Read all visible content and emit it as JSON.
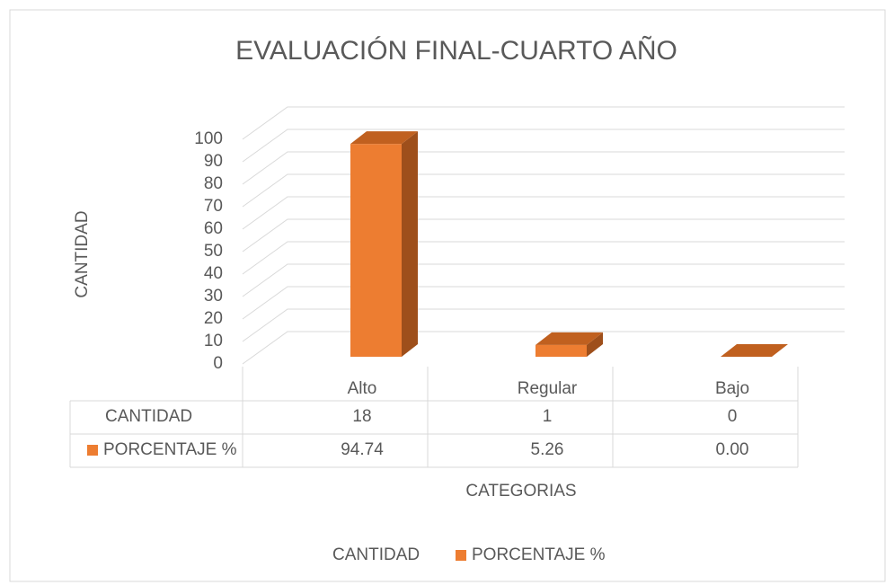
{
  "chart_data": {
    "type": "bar3d",
    "title": "EVALUACIÓN FINAL-CUARTO AÑO",
    "x_label": "CATEGORIAS",
    "y_label": "CANTIDAD",
    "categories": [
      "Alto",
      "Regular",
      "Bajo"
    ],
    "series": [
      {
        "name": "CANTIDAD",
        "values": [
          18,
          1,
          0
        ]
      },
      {
        "name": "PORCENTAJE %",
        "color": "#ed7d31",
        "values": [
          94.74,
          5.26,
          0.0
        ],
        "value_labels": [
          "94.74",
          "5.26",
          "0.00"
        ]
      }
    ],
    "ylim": [
      0,
      100
    ],
    "yticks": [
      0,
      10,
      20,
      30,
      40,
      50,
      60,
      70,
      80,
      90,
      100
    ],
    "grid": true,
    "legend": "bottom"
  }
}
